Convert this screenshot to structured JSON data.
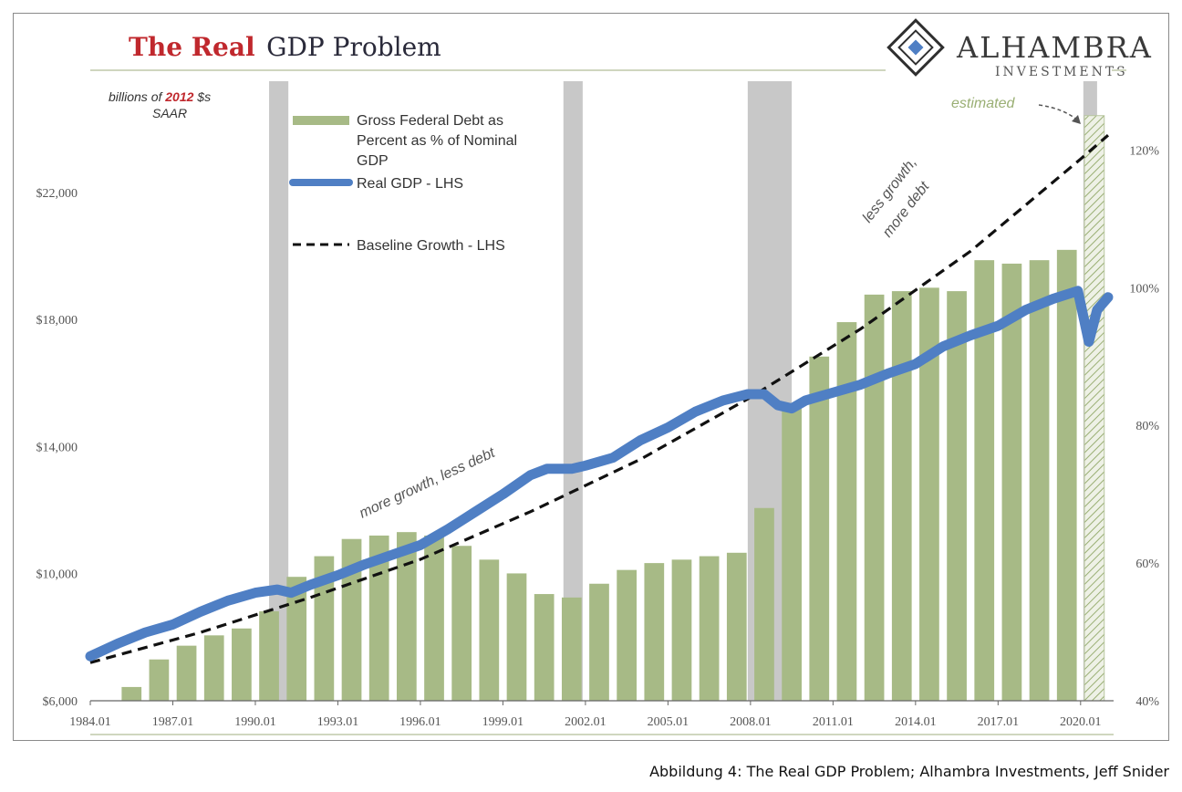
{
  "caption": "Abbildung 4: The Real GDP Problem; Alhambra Investments, Jeff Snider",
  "brand": {
    "name": "ALHAMBRA",
    "sub": "INVESTMENTS"
  },
  "colors": {
    "bars": "#a7ba86",
    "gdp_line": "#4f7fc4",
    "baseline": "#111111",
    "recession": "#c8c8c8",
    "title_red": "#c0282d"
  },
  "chart_data": {
    "type": "bar+line",
    "title_part1": "The Real",
    "title_part2": "GDP Problem",
    "units_label_pre": "billions of ",
    "units_label_year": "2012",
    "units_label_post": " $s",
    "units_label_line2": "SAAR",
    "y_left": {
      "min": 6000,
      "max": 25500,
      "ticks": [
        "$6,000",
        "$10,000",
        "$14,000",
        "$18,000",
        "$22,000"
      ],
      "tick_values": [
        6000,
        10000,
        14000,
        18000,
        22000
      ]
    },
    "y_right": {
      "min": 40,
      "max": 130,
      "ticks": [
        "40%",
        "60%",
        "80%",
        "100%",
        "120%"
      ],
      "tick_values": [
        40,
        60,
        80,
        100,
        120
      ]
    },
    "x_ticks": [
      "1984.01",
      "1987.01",
      "1990.01",
      "1993.01",
      "1996.01",
      "1999.01",
      "2002.01",
      "2005.01",
      "2008.01",
      "2011.01",
      "2014.01",
      "2017.01",
      "2020.01"
    ],
    "x_tick_years": [
      1984,
      1987,
      1990,
      1993,
      1996,
      1999,
      2002,
      2005,
      2008,
      2011,
      2014,
      2017,
      2020
    ],
    "x_range": [
      1984.0,
      2021.2
    ],
    "legend": [
      {
        "label_lines": [
          "Gross Federal Debt as",
          "Percent as % of Nominal",
          "GDP"
        ],
        "style": "bar"
      },
      {
        "label_lines": [
          "Real GDP - LHS"
        ],
        "style": "line"
      },
      {
        "label_lines": [
          "Baseline Growth - LHS"
        ],
        "style": "dashed"
      }
    ],
    "annotations": {
      "more_growth": "more growth, less debt",
      "less_growth_1": "less growth,",
      "less_growth_2": "more debt",
      "estimated": "estimated"
    },
    "recessions": [
      [
        1990.5,
        1991.2
      ],
      [
        2001.2,
        2001.9
      ],
      [
        2007.9,
        2009.5
      ],
      [
        2020.1,
        2020.6
      ]
    ],
    "debt_bars": {
      "years": [
        1985,
        1986,
        1987,
        1988,
        1989,
        1990,
        1991,
        1992,
        1993,
        1994,
        1995,
        1996,
        1997,
        1998,
        1999,
        2000,
        2001,
        2002,
        2003,
        2004,
        2005,
        2006,
        2007,
        2008,
        2009,
        2010,
        2011,
        2012,
        2013,
        2014,
        2015,
        2016,
        2017,
        2018,
        2019
      ],
      "values": [
        42,
        46,
        48,
        49.5,
        50.5,
        53,
        58,
        61,
        63.5,
        64,
        64.5,
        64,
        62.5,
        60.5,
        58.5,
        55.5,
        55,
        57,
        59,
        60,
        60.5,
        61,
        61.5,
        68,
        83,
        90,
        95,
        99,
        99.5,
        100,
        99.5,
        104,
        103.5,
        104,
        105.5
      ],
      "estimated": {
        "year": 2020,
        "value": 125
      }
    },
    "real_gdp": {
      "x": [
        1984.0,
        1985.0,
        1986.0,
        1987.0,
        1988.0,
        1989.0,
        1990.0,
        1990.8,
        1991.3,
        1992.0,
        1993.0,
        1994.0,
        1995.0,
        1996.0,
        1997.0,
        1998.0,
        1999.0,
        2000.0,
        2000.6,
        2001.5,
        2002.0,
        2003.0,
        2004.0,
        2005.0,
        2006.0,
        2007.0,
        2007.9,
        2008.5,
        2009.0,
        2009.5,
        2010.0,
        2011.0,
        2012.0,
        2013.0,
        2014.0,
        2015.0,
        2016.0,
        2017.0,
        2018.0,
        2019.0,
        2019.9,
        2020.3,
        2020.6,
        2021.0
      ],
      "y": [
        7400,
        7800,
        8150,
        8400,
        8800,
        9150,
        9400,
        9500,
        9400,
        9650,
        9950,
        10300,
        10600,
        10900,
        11400,
        11950,
        12500,
        13100,
        13300,
        13300,
        13400,
        13650,
        14200,
        14600,
        15100,
        15450,
        15650,
        15650,
        15300,
        15200,
        15450,
        15700,
        15950,
        16300,
        16600,
        17150,
        17500,
        17800,
        18300,
        18650,
        18900,
        17300,
        18300,
        18700
      ]
    },
    "baseline": {
      "x": [
        1984,
        1988,
        1992,
        1996,
        2000,
        2004,
        2008,
        2012,
        2016,
        2020,
        2021
      ],
      "y": [
        7200,
        8150,
        9250,
        10450,
        11950,
        13600,
        15550,
        17700,
        20150,
        23050,
        23800
      ]
    }
  }
}
